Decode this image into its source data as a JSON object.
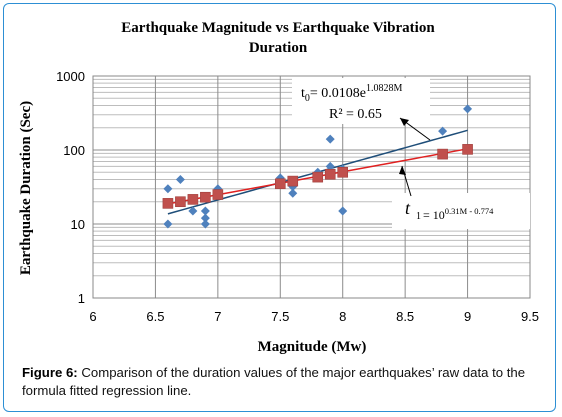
{
  "chart_data": {
    "type": "scatter",
    "title_line1": "Earthquake Magnitude vs Earthquake Vibration",
    "title_line2": "Duration",
    "xlabel": "Magnitude (Mw)",
    "ylabel": "Earthquake Duration (Sec)",
    "xlim": [
      6,
      9.5
    ],
    "ylim": [
      1,
      1000
    ],
    "yscale": "log",
    "x_ticks": [
      "6",
      "6.5",
      "7",
      "7.5",
      "8",
      "8.5",
      "9",
      "9.5"
    ],
    "y_ticks": [
      "1",
      "10",
      "100",
      "1000"
    ],
    "grid": true,
    "series": [
      {
        "marker": "diamond",
        "color": "#4f81bd",
        "points": [
          [
            6.6,
            30
          ],
          [
            6.6,
            10
          ],
          [
            6.7,
            40
          ],
          [
            6.8,
            15
          ],
          [
            6.9,
            15
          ],
          [
            6.9,
            12
          ],
          [
            6.9,
            10
          ],
          [
            7.0,
            30
          ],
          [
            7.0,
            28
          ],
          [
            7.5,
            42
          ],
          [
            7.6,
            32
          ],
          [
            7.6,
            26
          ],
          [
            7.8,
            50
          ],
          [
            7.9,
            140
          ],
          [
            7.9,
            60
          ],
          [
            8.0,
            55
          ],
          [
            8.0,
            15
          ],
          [
            8.8,
            180
          ],
          [
            9.0,
            360
          ]
        ]
      },
      {
        "marker": "square",
        "color": "#c0504d",
        "points": [
          [
            6.6,
            19
          ],
          [
            6.7,
            20
          ],
          [
            6.8,
            21.5
          ],
          [
            6.9,
            23
          ],
          [
            7.0,
            25
          ],
          [
            7.5,
            35
          ],
          [
            7.6,
            38
          ],
          [
            7.8,
            43
          ],
          [
            7.9,
            47
          ],
          [
            8.0,
            50
          ],
          [
            8.8,
            88
          ],
          [
            9.0,
            102
          ]
        ]
      }
    ],
    "trendlines": [
      {
        "series": 0,
        "color": "#1f4e79",
        "type": "exponential",
        "a": 0.0108,
        "b": 1.0828,
        "x_range": [
          6.6,
          9.0
        ]
      },
      {
        "series": 1,
        "color": "#e02020",
        "type": "power10",
        "m": 0.31,
        "c": -0.774,
        "x_range": [
          6.6,
          9.0
        ]
      }
    ],
    "annotations": {
      "blue_eq_prefix": "t",
      "blue_eq_sub": "0",
      "blue_eq_body": "= 0.0108e",
      "blue_eq_sup": "1.0828M",
      "blue_r2": "R² = 0.65",
      "red_eq_t": "t",
      "red_eq_sub": "1",
      "red_eq_body": "= 10",
      "red_eq_sup": "0.31M - 0.774"
    }
  },
  "caption": {
    "label": "Figure 6:",
    "text": " Comparison of the duration values of the major earthquakes’ raw data to the formula fitted regression line."
  }
}
